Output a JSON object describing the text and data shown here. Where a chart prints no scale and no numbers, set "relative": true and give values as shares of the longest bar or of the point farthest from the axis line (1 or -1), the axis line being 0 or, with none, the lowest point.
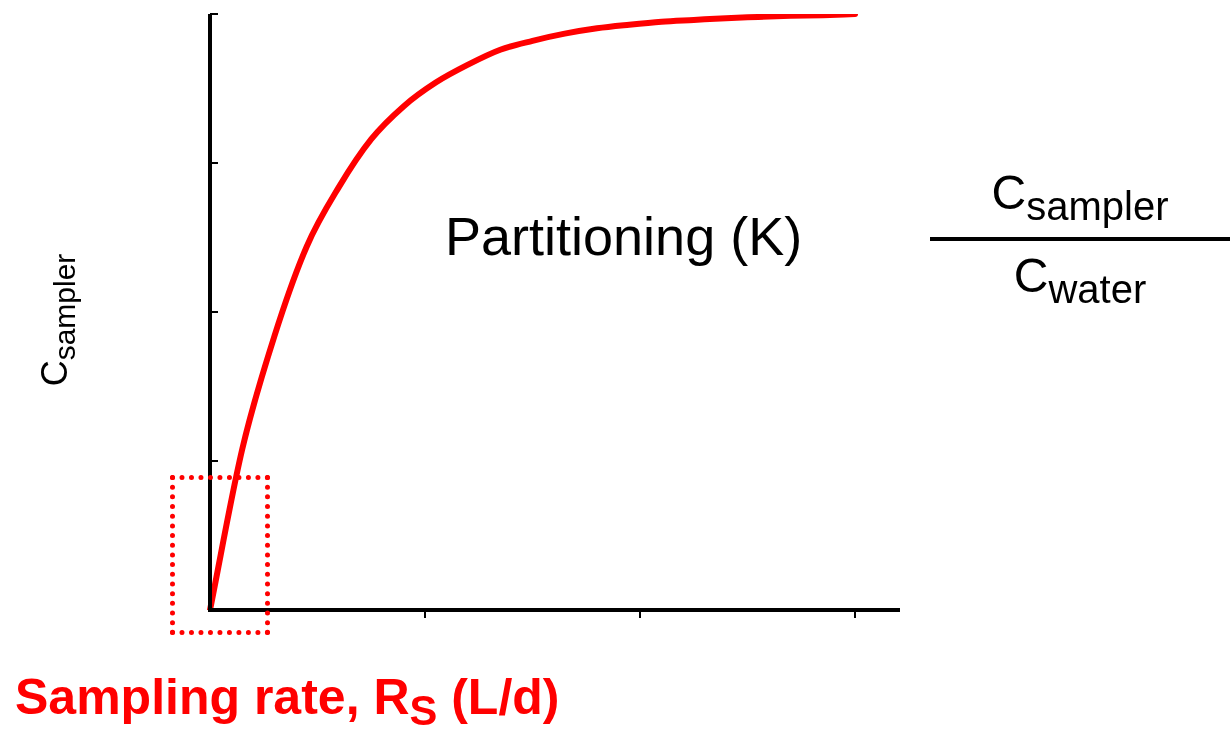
{
  "chart_data": {
    "type": "line",
    "relative": true,
    "xlabel": "Sampling rate, R$_{S}$ (L/d)",
    "ylabel": "C$_{sampler}$",
    "categories": [
      null,
      null,
      null,
      null,
      null,
      null,
      null,
      null,
      null,
      null,
      null,
      null,
      null,
      null,
      null,
      null,
      null,
      null,
      null,
      null,
      null
    ],
    "series": [
      {
        "color": "#ff0000",
        "values": [
          0,
          0.27,
          0.46,
          0.61,
          0.71,
          0.79,
          0.845,
          0.885,
          0.915,
          0.94,
          0.955,
          0.967,
          0.976,
          0.982,
          0.987,
          0.99,
          0.993,
          0.995,
          0.997,
          0.998,
          1
        ]
      }
    ],
    "annotations": [
      "Partitioning (K)",
      "C$_{sampler}$",
      "C$_{water}$"
    ],
    "legend": false
  }
}
